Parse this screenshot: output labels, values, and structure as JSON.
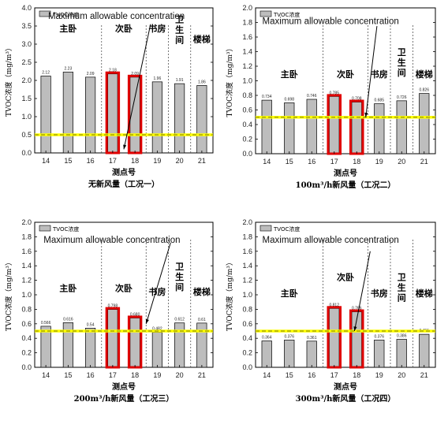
{
  "chart_data": [
    {
      "type": "bar",
      "ylabel": "TVOC浓度（mg/m³）",
      "xlabel": "测点号",
      "caption": "无新风量（工况一）",
      "legend": "TVOC浓度",
      "annotation": "Maximum allowable concentration",
      "threshold": 0.5,
      "ylim": [
        0,
        4.0
      ],
      "yticks": [
        "0.0",
        "0.5",
        "1.0",
        "1.5",
        "2.0",
        "2.5",
        "3.0",
        "3.5",
        "4.0"
      ],
      "categories": [
        "14",
        "15",
        "16",
        "17",
        "18",
        "19",
        "20",
        "21"
      ],
      "values": [
        2.12,
        2.23,
        2.09,
        2.18,
        2.09,
        1.96,
        1.91,
        1.86
      ],
      "value_labels": [
        "2.12",
        "2.23",
        "2.09",
        "2.18",
        "2.09",
        "1.96",
        "1.91",
        "1.86"
      ],
      "highlight": [
        3,
        4
      ],
      "rooms": [
        {
          "label": "主卧",
          "x": 15,
          "y": 3.35
        },
        {
          "label": "次卧",
          "x": 17.5,
          "y": 3.35
        },
        {
          "label": "书房",
          "x": 19,
          "y": 3.35
        },
        {
          "label": "卫\n生\n间",
          "x": 20,
          "y": 3.6
        },
        {
          "label": "楼梯",
          "x": 21,
          "y": 3.05
        }
      ],
      "dividers": [
        16.5,
        18.5,
        19.5,
        20.5
      ],
      "annotation_pos": {
        "x": 14.1,
        "y": 3.7
      },
      "arrow": {
        "from": [
          18.7,
          3.55
        ],
        "to": [
          17.5,
          0.1
        ]
      }
    },
    {
      "type": "bar",
      "ylabel": "TVOC浓度（mg/m³）",
      "xlabel": "测点号",
      "caption": "100m³/h新风量（工况二）",
      "legend": "TVOC浓度",
      "annotation": "Maximum allowable concentration",
      "threshold": 0.5,
      "ylim": [
        0,
        2.0
      ],
      "yticks": [
        "0.0",
        "0.2",
        "0.4",
        "0.6",
        "0.8",
        "1.0",
        "1.2",
        "1.4",
        "1.6",
        "1.8",
        "2.0"
      ],
      "categories": [
        "14",
        "15",
        "16",
        "17",
        "18",
        "19",
        "20",
        "21"
      ],
      "values": [
        0.734,
        0.698,
        0.746,
        0.785,
        0.708,
        0.685,
        0.726,
        0.826
      ],
      "value_labels": [
        "0.734",
        "0.698",
        "0.746",
        "0.785",
        "0.708",
        "0.685",
        "0.726",
        "0.826"
      ],
      "highlight": [
        3,
        4
      ],
      "rooms": [
        {
          "label": "主卧",
          "x": 15,
          "y": 1.05
        },
        {
          "label": "次卧",
          "x": 17.5,
          "y": 1.05
        },
        {
          "label": "书房",
          "x": 19,
          "y": 1.05
        },
        {
          "label": "卫\n生\n间",
          "x": 20,
          "y": 1.35
        },
        {
          "label": "楼梯",
          "x": 21,
          "y": 1.05
        }
      ],
      "dividers": [
        16.5,
        18.5,
        19.5,
        20.5
      ],
      "annotation_pos": {
        "x": 13.8,
        "y": 1.78
      },
      "arrow": {
        "from": [
          18.9,
          1.75
        ],
        "to": [
          18.4,
          0.5
        ]
      }
    },
    {
      "type": "bar",
      "ylabel": "TVOC浓度（mg/m³）",
      "xlabel": "测点号",
      "caption": "200m³/h新风量（工况三）",
      "legend": "TVOC浓度",
      "annotation": "Maximum allowable concentration",
      "threshold": 0.5,
      "ylim": [
        0,
        2.0
      ],
      "yticks": [
        "0.0",
        "0.2",
        "0.4",
        "0.6",
        "0.8",
        "1.0",
        "1.2",
        "1.4",
        "1.6",
        "1.8",
        "2.0"
      ],
      "categories": [
        "14",
        "15",
        "16",
        "17",
        "18",
        "19",
        "20",
        "21"
      ],
      "values": [
        0.566,
        0.616,
        0.54,
        0.798,
        0.68,
        0.482,
        0.612,
        0.61
      ],
      "value_labels": [
        "0.566",
        "0.616",
        "0.54",
        "0.798",
        "0.680",
        "0.482",
        "0.612",
        "0.61"
      ],
      "highlight": [
        3,
        4
      ],
      "rooms": [
        {
          "label": "主卧",
          "x": 15,
          "y": 1.05
        },
        {
          "label": "次卧",
          "x": 17.5,
          "y": 1.05
        },
        {
          "label": "书房",
          "x": 19,
          "y": 1.0
        },
        {
          "label": "卫\n生\n间",
          "x": 20,
          "y": 1.35
        },
        {
          "label": "楼梯",
          "x": 21,
          "y": 1.0
        }
      ],
      "dividers": [
        16.5,
        18.5,
        19.5,
        20.5
      ],
      "annotation_pos": {
        "x": 13.9,
        "y": 1.72
      },
      "arrow": {
        "from": [
          19.6,
          1.72
        ],
        "to": [
          18.5,
          0.6
        ]
      }
    },
    {
      "type": "bar",
      "ylabel": "TVOC浓度（mg/m³）",
      "xlabel": "测点号",
      "caption": "300m³/h新风量（工况四）",
      "legend": "TVOC浓度",
      "annotation": "Maximum allowable concentration",
      "threshold": 0.5,
      "ylim": [
        0,
        2.0
      ],
      "yticks": [
        "0.0",
        "0.2",
        "0.4",
        "0.6",
        "0.8",
        "1.0",
        "1.2",
        "1.4",
        "1.6",
        "1.8",
        "2.0"
      ],
      "categories": [
        "14",
        "15",
        "16",
        "17",
        "18",
        "19",
        "20",
        "21"
      ],
      "values": [
        0.364,
        0.376,
        0.361,
        0.812,
        0.766,
        0.376,
        0.386,
        0.455
      ],
      "value_labels": [
        "0.364",
        "0.376",
        "0.361",
        "0.812",
        "0.766",
        "0.376",
        "0.386",
        "0.455"
      ],
      "highlight": [
        3,
        4
      ],
      "rooms": [
        {
          "label": "主卧",
          "x": 15,
          "y": 0.98
        },
        {
          "label": "次卧",
          "x": 17.5,
          "y": 1.2
        },
        {
          "label": "书房",
          "x": 19,
          "y": 0.98
        },
        {
          "label": "卫\n生\n间",
          "x": 20,
          "y": 1.2
        },
        {
          "label": "楼梯",
          "x": 21,
          "y": 0.98
        }
      ],
      "dividers": [
        16.5,
        18.5,
        19.5,
        20.5
      ],
      "annotation_pos": {
        "x": 13.8,
        "y": 1.72
      },
      "arrow": {
        "from": [
          18.6,
          1.6
        ],
        "to": [
          17.9,
          0.5
        ]
      }
    }
  ]
}
